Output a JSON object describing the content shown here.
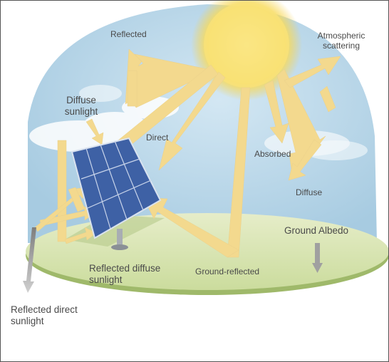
{
  "labels": {
    "reflected": "Reflected",
    "atmospheric_scattering": "Atmospheric\nscattering",
    "diffuse_sunlight": "Diffuse\nsunlight",
    "direct": "Direct",
    "absorbed": "Absorbed",
    "diffuse": "Diffuse",
    "ground_albedo": "Ground Albedo",
    "reflected_diffuse_sunlight": "Reflected diffuse\nsunlight",
    "ground_reflected": "Ground-reflected",
    "reflected_direct_sunlight": "Reflected direct\nsunlight"
  },
  "colors": {
    "sky": "#b9d8ea",
    "sun": "#f9e26a",
    "ray": "#f3d98e",
    "panel": "#3f63a8",
    "ground": "#d8e4b4",
    "ground_rim": "#9fb96a",
    "gray_arrow": "#a9a9a9"
  }
}
